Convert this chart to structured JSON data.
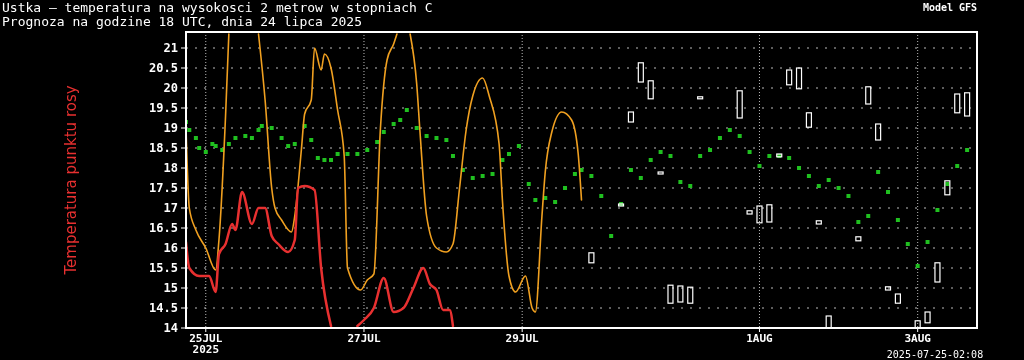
{
  "chart_data": {
    "type": "line",
    "title": "Ustka – temperatura na wysokosci 2 metrow w stopniach C",
    "subtitle": "Prognoza na godzine 18 UTC, dnia 24 lipca 2025",
    "annotations": [
      "Model GFS",
      "2025-07-25-02:08"
    ],
    "xlim": [
      "2025-07-24T18:00",
      "2025-08-03T18:00"
    ],
    "xticks": [
      {
        "value": "2025-07-25",
        "label": "25JUL\n2025"
      },
      {
        "value": "2025-07-27",
        "label": "27JUL"
      },
      {
        "value": "2025-07-29",
        "label": "29JUL"
      },
      {
        "value": "2025-08-01",
        "label": "1AUG"
      },
      {
        "value": "2025-08-03",
        "label": "3AUG"
      }
    ],
    "ylim": [
      14,
      21.4
    ],
    "yticks": [
      14,
      14.5,
      15,
      15.5,
      16,
      16.5,
      17,
      17.5,
      18,
      18.5,
      19,
      19.5,
      20,
      20.5,
      21
    ],
    "grid": true,
    "line_style": "solid",
    "series": [
      {
        "type": "scatter",
        "color": "#20c020",
        "marker": "square",
        "x": [
          "2025-07-24T18:00",
          "2025-07-24T19:00",
          "2025-07-24T21:00",
          "2025-07-24T22:00",
          "2025-07-25T00:00",
          "2025-07-25T02:00",
          "2025-07-25T03:00",
          "2025-07-25T05:00",
          "2025-07-25T07:00",
          "2025-07-25T09:00",
          "2025-07-25T12:00",
          "2025-07-25T14:00",
          "2025-07-25T16:00",
          "2025-07-25T17:00",
          "2025-07-25T20:00",
          "2025-07-25T23:00",
          "2025-07-26T01:00",
          "2025-07-26T03:00",
          "2025-07-26T06:00",
          "2025-07-26T08:00",
          "2025-07-26T10:00",
          "2025-07-26T12:00",
          "2025-07-26T14:00",
          "2025-07-26T16:00",
          "2025-07-26T19:00",
          "2025-07-26T22:00",
          "2025-07-27T01:00",
          "2025-07-27T04:00",
          "2025-07-27T06:00",
          "2025-07-27T09:00",
          "2025-07-27T11:00",
          "2025-07-27T13:00",
          "2025-07-27T16:00",
          "2025-07-27T19:00",
          "2025-07-27T22:00",
          "2025-07-28T01:00",
          "2025-07-28T03:00",
          "2025-07-28T06:00",
          "2025-07-28T09:00",
          "2025-07-28T12:00",
          "2025-07-28T15:00",
          "2025-07-28T18:00",
          "2025-07-28T20:00",
          "2025-07-28T23:00",
          "2025-07-29T02:00",
          "2025-07-29T04:00",
          "2025-07-29T07:00",
          "2025-07-29T10:00",
          "2025-07-29T13:00",
          "2025-07-29T16:00",
          "2025-07-29T18:00",
          "2025-07-29T21:00",
          "2025-07-30T00:00",
          "2025-07-30T03:00",
          "2025-07-30T06:00",
          "2025-07-30T09:00",
          "2025-07-30T12:00",
          "2025-07-30T15:00",
          "2025-07-30T18:00",
          "2025-07-30T21:00",
          "2025-07-31T00:00",
          "2025-07-31T03:00",
          "2025-07-31T06:00",
          "2025-07-31T09:00",
          "2025-07-31T12:00",
          "2025-07-31T15:00",
          "2025-07-31T18:00",
          "2025-07-31T21:00",
          "2025-08-01T00:00",
          "2025-08-01T03:00",
          "2025-08-01T06:00",
          "2025-08-01T09:00",
          "2025-08-01T12:00",
          "2025-08-01T15:00",
          "2025-08-01T18:00",
          "2025-08-01T21:00",
          "2025-08-02T00:00",
          "2025-08-02T03:00",
          "2025-08-02T06:00",
          "2025-08-02T09:00",
          "2025-08-02T12:00",
          "2025-08-02T15:00",
          "2025-08-02T18:00",
          "2025-08-02T21:00",
          "2025-08-03T00:00",
          "2025-08-03T03:00",
          "2025-08-03T06:00",
          "2025-08-03T09:00",
          "2025-08-03T12:00",
          "2025-08-03T15:00"
        ],
        "values": [
          19.15,
          18.95,
          18.75,
          18.5,
          18.4,
          18.6,
          18.55,
          18.45,
          18.6,
          18.75,
          18.8,
          18.75,
          18.95,
          19.05,
          19.0,
          18.75,
          18.55,
          18.6,
          19.05,
          18.7,
          18.25,
          18.2,
          18.2,
          18.35,
          18.35,
          18.35,
          18.45,
          18.65,
          18.9,
          19.1,
          19.2,
          19.45,
          19.0,
          18.8,
          18.75,
          18.7,
          18.3,
          17.95,
          17.75,
          17.8,
          17.85,
          18.2,
          18.35,
          18.55,
          17.6,
          17.2,
          17.25,
          17.15,
          17.5,
          17.85,
          17.95,
          17.8,
          17.3,
          16.3,
          17.1,
          17.95,
          17.75,
          18.2,
          18.4,
          18.3,
          17.65,
          17.55,
          18.3,
          18.45,
          18.75,
          18.95,
          18.8,
          18.4,
          18.05,
          18.3,
          18.3,
          18.25,
          18.0,
          17.8,
          17.55,
          17.7,
          17.5,
          17.3,
          16.65,
          16.8,
          17.9,
          17.4,
          16.7,
          16.1,
          15.55,
          16.15,
          16.95,
          17.6,
          18.05,
          18.45
        ]
      },
      {
        "type": "bar",
        "color": "#ffffff",
        "x": [
          "2025-07-29T21:00",
          "2025-07-30T06:00",
          "2025-07-30T09:00",
          "2025-07-30T12:00",
          "2025-07-30T15:00",
          "2025-07-30T18:00",
          "2025-07-30T21:00",
          "2025-07-31T00:00",
          "2025-07-31T03:00",
          "2025-07-31T06:00",
          "2025-07-31T18:00",
          "2025-07-31T21:00",
          "2025-08-01T00:00",
          "2025-08-01T03:00",
          "2025-08-01T06:00",
          "2025-08-01T09:00",
          "2025-08-01T12:00",
          "2025-08-01T15:00",
          "2025-08-01T18:00",
          "2025-08-01T21:00",
          "2025-08-02T06:00",
          "2025-08-02T09:00",
          "2025-08-02T12:00",
          "2025-08-02T15:00",
          "2025-08-02T18:00",
          "2025-08-03T00:00",
          "2025-08-03T03:00",
          "2025-08-03T06:00",
          "2025-08-03T09:00",
          "2025-08-03T12:00",
          "2025-08-03T15:00"
        ],
        "base": [
          15.63,
          17.05,
          19.15,
          20.15,
          19.73,
          17.85,
          14.62,
          14.65,
          14.62,
          19.73,
          19.25,
          16.85,
          16.63,
          16.65,
          18.28,
          20.08,
          19.98,
          19.02,
          16.6,
          14.0,
          16.18,
          19.6,
          18.7,
          14.95,
          14.62,
          14.0,
          14.13,
          15.15,
          17.33,
          19.38,
          19.3
        ],
        "values": [
          0.25,
          0.05,
          0.25,
          0.48,
          0.45,
          0.05,
          0.45,
          0.4,
          0.4,
          0.05,
          0.68,
          0.08,
          0.42,
          0.43,
          0.07,
          0.37,
          0.52,
          0.36,
          0.08,
          0.3,
          0.1,
          0.43,
          0.4,
          0.08,
          0.23,
          0.18,
          0.27,
          0.48,
          0.35,
          0.47,
          0.58
        ]
      },
      {
        "color": "#f0a020",
        "x": [
          "2025-07-24T18:00",
          "2025-07-24T19:00",
          "2025-07-24T21:00",
          "2025-07-25T00:00",
          "2025-07-25T03:00",
          "2025-07-25T04:00",
          "2025-07-25T06:00",
          "2025-07-25T07:00",
          "2025-07-25T10:00",
          "2025-07-25T16:00",
          "2025-07-25T18:00",
          "2025-07-25T20:00",
          "2025-07-25T21:00",
          "2025-07-25T23:00",
          "2025-07-26T02:00",
          "2025-07-26T03:00",
          "2025-07-26T05:00",
          "2025-07-26T06:00",
          "2025-07-26T08:00",
          "2025-07-26T09:00",
          "2025-07-26T11:00",
          "2025-07-26T12:00",
          "2025-07-26T14:00",
          "2025-07-26T16:00",
          "2025-07-26T18:00",
          "2025-07-26T19:00",
          "2025-07-26T23:00",
          "2025-07-27T01:00",
          "2025-07-27T03:00",
          "2025-07-27T05:00",
          "2025-07-27T07:00",
          "2025-07-27T09:00",
          "2025-07-27T10:00",
          "2025-07-27T12:00",
          "2025-07-27T14:00",
          "2025-07-27T16:00",
          "2025-07-27T17:00",
          "2025-07-27T19:00",
          "2025-07-27T22:00",
          "2025-07-28T01:00",
          "2025-07-28T03:00",
          "2025-07-28T05:00",
          "2025-07-28T07:00",
          "2025-07-28T09:00",
          "2025-07-28T12:00",
          "2025-07-28T14:00",
          "2025-07-28T17:00",
          "2025-07-28T18:00",
          "2025-07-28T20:00",
          "2025-07-28T22:00",
          "2025-07-29T01:00",
          "2025-07-29T03:00",
          "2025-07-29T04:00",
          "2025-07-29T06:00",
          "2025-07-29T07:00",
          "2025-07-29T09:00",
          "2025-07-29T12:00",
          "2025-07-29T15:00",
          "2025-07-29T17:00",
          "2025-07-29T18:00"
        ],
        "values": [
          19.0,
          17.0,
          16.45,
          16.0,
          15.45,
          16.2,
          19.3,
          21.35,
          null,
          21.35,
          19.7,
          17.5,
          17.0,
          16.7,
          16.4,
          16.8,
          18.45,
          19.35,
          19.7,
          21.0,
          20.45,
          20.85,
          20.5,
          19.45,
          18.3,
          15.5,
          14.95,
          15.2,
          15.35,
          19.0,
          20.7,
          21.1,
          21.35,
          null,
          21.35,
          20.1,
          18.9,
          16.8,
          16.0,
          15.9,
          16.1,
          17.5,
          18.95,
          19.8,
          20.25,
          19.8,
          18.6,
          17.2,
          15.3,
          14.9,
          15.3,
          14.5,
          14.4,
          16.8,
          17.9,
          18.9,
          19.4,
          19.2,
          18.35,
          17.2
        ]
      },
      {
        "name": "Temperatura punktu rosy",
        "color": "#e83030",
        "x": [
          "2025-07-24T18:00",
          "2025-07-24T19:00",
          "2025-07-24T22:00",
          "2025-07-25T01:00",
          "2025-07-25T03:00",
          "2025-07-25T04:00",
          "2025-07-25T06:00",
          "2025-07-25T08:00",
          "2025-07-25T09:00",
          "2025-07-25T11:00",
          "2025-07-25T14:00",
          "2025-07-25T16:00",
          "2025-07-25T18:00",
          "2025-07-25T20:00",
          "2025-07-25T22:00",
          "2025-07-26T01:00",
          "2025-07-26T03:00",
          "2025-07-26T04:00",
          "2025-07-26T06:00",
          "2025-07-26T09:00",
          "2025-07-26T11:00",
          "2025-07-26T14:00",
          "2025-07-26T16:00",
          "2025-07-26T18:00",
          "2025-07-26T19:00",
          "2025-07-26T20:00",
          "2025-07-26T22:00",
          "2025-07-27T00:00",
          "2025-07-27T03:00",
          "2025-07-27T06:00",
          "2025-07-27T09:00",
          "2025-07-27T12:00",
          "2025-07-27T15:00",
          "2025-07-27T18:00",
          "2025-07-27T20:00",
          "2025-07-27T22:00",
          "2025-07-28T00:00",
          "2025-07-28T02:00",
          "2025-07-28T03:00"
        ],
        "values": [
          16.15,
          15.5,
          15.3,
          15.3,
          14.9,
          15.85,
          16.1,
          16.6,
          16.45,
          17.4,
          16.6,
          17.0,
          17.0,
          16.3,
          16.1,
          15.9,
          16.2,
          17.5,
          17.55,
          17.45,
          15.5,
          14.05,
          null,
          null,
          null,
          null,
          14.05,
          14.2,
          14.5,
          15.25,
          14.4,
          14.5,
          15.0,
          15.5,
          15.1,
          14.95,
          14.45,
          14.45,
          14.05
        ]
      }
    ]
  }
}
